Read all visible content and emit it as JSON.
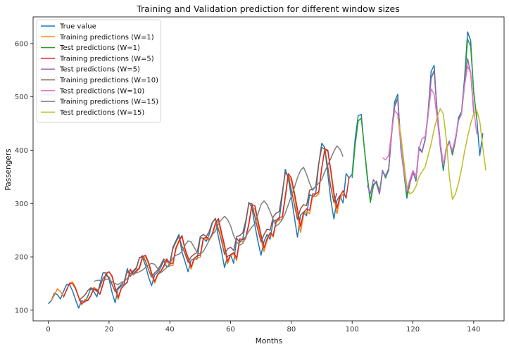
{
  "chart_data": {
    "type": "line",
    "title": "Training and Validation prediction for different window sizes",
    "xlabel": "Months",
    "ylabel": "Passengers",
    "xlim": [
      -5,
      150
    ],
    "ylim": [
      80,
      650
    ],
    "xticks": [
      0,
      20,
      40,
      60,
      80,
      100,
      120,
      140
    ],
    "yticks": [
      100,
      200,
      300,
      400,
      500,
      600
    ],
    "grid": false,
    "legend_position": "top-left",
    "series": [
      {
        "name": "True value",
        "color": "#1f77b4",
        "x_start": 0,
        "values": [
          112,
          118,
          132,
          129,
          121,
          135,
          148,
          148,
          136,
          119,
          104,
          118,
          115,
          126,
          141,
          135,
          125,
          149,
          170,
          170,
          158,
          133,
          114,
          140,
          145,
          150,
          178,
          163,
          172,
          178,
          199,
          199,
          184,
          162,
          146,
          166,
          171,
          180,
          193,
          181,
          183,
          218,
          230,
          242,
          209,
          191,
          172,
          194,
          196,
          196,
          236,
          235,
          229,
          243,
          264,
          272,
          237,
          211,
          180,
          201,
          204,
          188,
          235,
          227,
          234,
          264,
          302,
          293,
          259,
          229,
          203,
          229,
          242,
          233,
          267,
          269,
          270,
          315,
          364,
          347,
          312,
          274,
          237,
          278,
          284,
          277,
          317,
          313,
          318,
          374,
          413,
          405,
          355,
          306,
          271,
          306,
          315,
          301,
          356,
          348,
          355,
          422,
          465,
          467,
          404,
          347,
          305,
          336,
          340,
          318,
          362,
          348,
          363,
          435,
          491,
          505,
          404,
          359,
          310,
          337,
          360,
          342,
          406,
          396,
          420,
          472,
          548,
          559,
          463,
          407,
          362,
          405,
          417,
          391,
          419,
          461,
          472,
          535,
          622,
          606,
          508,
          461,
          390,
          432
        ]
      },
      {
        "name": "Training predictions (W=1)",
        "color": "#ff7f0e",
        "x_start": 1,
        "values": [
          118,
          128,
          140,
          135,
          126,
          137,
          151,
          153,
          142,
          125,
          110,
          120,
          119,
          128,
          143,
          139,
          130,
          150,
          170,
          172,
          162,
          140,
          120,
          140,
          147,
          152,
          176,
          166,
          172,
          178,
          197,
          200,
          187,
          167,
          151,
          166,
          172,
          181,
          192,
          184,
          184,
          214,
          228,
          239,
          212,
          195,
          177,
          195,
          198,
          199,
          232,
          234,
          231,
          241,
          259,
          268,
          240,
          216,
          187,
          202,
          206,
          193,
          232,
          228,
          234,
          260,
          294,
          290,
          261,
          234,
          210,
          231,
          243,
          237,
          265,
          269,
          271,
          310,
          352,
          342,
          313,
          280,
          246,
          278,
          285,
          281,
          314,
          313,
          318,
          366,
          400,
          398,
          357,
          313,
          281,
          309,
          318
        ]
      },
      {
        "name": "Test predictions (W=1)",
        "color": "#2ca02c",
        "x_start": 100,
        "values": [
          348,
          410,
          455,
          460,
          405,
          352,
          302,
          333,
          342,
          322,
          360,
          350,
          362,
          430,
          485,
          498,
          410,
          362,
          315,
          338,
          358,
          345,
          402,
          398,
          418,
          468,
          535,
          550,
          468,
          412,
          368,
          403,
          415,
          394,
          418,
          455,
          470,
          528,
          608,
          595,
          510,
          460
        ]
      },
      {
        "name": "Training predictions (W=5)",
        "color": "#d62728",
        "x_start": 5,
        "values": [
          124,
          138,
          150,
          150,
          140,
          124,
          112,
          117,
          118,
          127,
          140,
          138,
          130,
          148,
          168,
          172,
          164,
          142,
          124,
          141,
          147,
          153,
          177,
          168,
          174,
          180,
          200,
          203,
          190,
          170,
          154,
          167,
          173,
          183,
          196,
          188,
          188,
          217,
          230,
          240,
          215,
          199,
          181,
          197,
          202,
          203,
          234,
          237,
          233,
          244,
          263,
          272,
          246,
          222,
          192,
          204,
          208,
          198,
          234,
          232,
          238,
          262,
          298,
          296,
          268,
          242,
          217,
          234,
          245,
          240,
          268,
          274,
          275,
          314,
          356,
          348,
          320,
          290,
          257,
          283,
          290,
          287,
          318,
          318,
          322,
          367,
          402,
          400,
          362,
          320,
          291,
          314,
          324,
          310,
          350
        ]
      },
      {
        "name": "Test predictions (W=5)",
        "color": "#9467bd",
        "x_start": 105,
        "values": [
          334,
          318,
          345,
          337,
          318,
          360,
          352,
          365,
          430,
          482,
          496,
          415,
          370,
          322,
          338,
          358,
          345,
          400,
          398,
          418,
          465,
          535,
          548,
          472,
          416,
          372,
          404,
          414,
          398,
          420,
          455,
          468,
          525,
          572,
          545,
          470
        ]
      },
      {
        "name": "Training predictions (W=10)",
        "color": "#8c564b",
        "x_start": 10,
        "values": [
          118,
          123,
          128,
          137,
          142,
          140,
          135,
          143,
          160,
          165,
          162,
          148,
          135,
          142,
          148,
          155,
          172,
          168,
          174,
          180,
          198,
          202,
          192,
          176,
          162,
          170,
          175,
          185,
          196,
          192,
          190,
          215,
          228,
          238,
          220,
          206,
          190,
          200,
          205,
          208,
          238,
          242,
          238,
          248,
          265,
          272,
          252,
          230,
          205,
          215,
          218,
          212,
          238,
          240,
          245,
          268,
          300,
          300,
          275,
          250,
          228,
          242,
          252,
          250,
          275,
          282,
          285,
          320,
          358,
          352,
          325,
          298,
          270,
          290,
          298,
          296,
          325,
          327,
          332,
          375,
          405,
          402,
          368,
          330,
          302,
          320
        ]
      },
      {
        "name": "Test predictions (W=10)",
        "color": "#e377c2",
        "x_start": 110,
        "values": [
          386,
          382,
          390,
          435,
          474,
          468,
          412,
          362,
          325,
          345,
          362,
          352,
          402,
          422,
          425,
          465,
          515,
          505,
          458,
          412,
          372,
          405,
          414,
          400,
          424,
          455,
          468,
          520,
          558,
          545,
          480,
          430
        ]
      },
      {
        "name": "Training predictions (W=15)",
        "color": "#7f7f7f",
        "x_start": 15,
        "values": [
          154,
          156,
          156,
          155,
          158,
          158,
          153,
          150,
          148,
          152,
          154,
          160,
          165,
          168,
          170,
          172,
          175,
          180,
          185,
          188,
          186,
          178,
          170,
          175,
          180,
          188,
          198,
          203,
          205,
          210,
          222,
          230,
          228,
          218,
          208,
          205,
          210,
          220,
          232,
          242,
          248,
          262,
          270,
          276,
          270,
          258,
          240,
          228,
          222,
          225,
          238,
          248,
          256,
          262,
          280,
          298,
          305,
          298,
          285,
          270,
          258,
          262,
          270,
          282,
          298,
          314,
          330,
          348,
          362,
          368,
          355,
          338,
          325,
          332,
          338,
          345,
          360,
          372,
          385,
          398,
          408,
          402,
          388
        ]
      },
      {
        "name": "Test predictions (W=15)",
        "color": "#bcbd22",
        "x_start": 115,
        "values": [
          462,
          430,
          380,
          332,
          318,
          322,
          332,
          350,
          360,
          368,
          390,
          412,
          440,
          462,
          478,
          468,
          420,
          350,
          308,
          318,
          338,
          365,
          398,
          425,
          450,
          468,
          475,
          455,
          405,
          362
        ]
      }
    ]
  }
}
